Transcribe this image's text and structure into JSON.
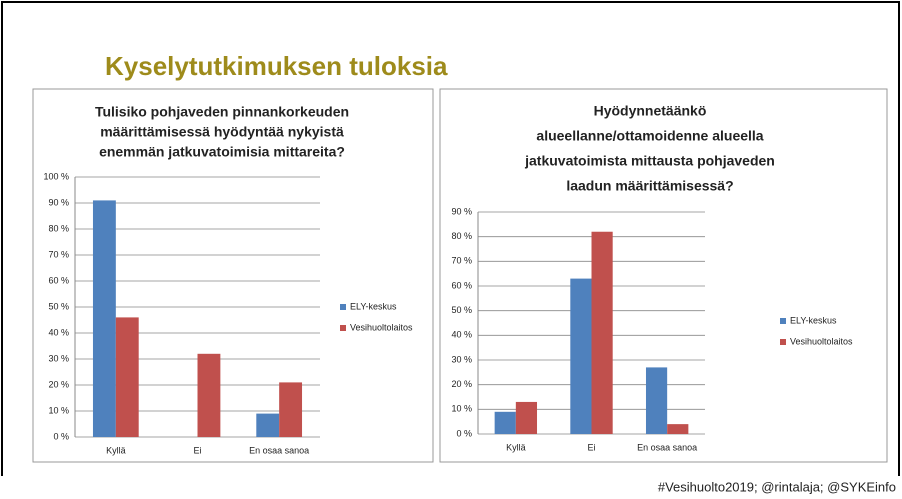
{
  "title": "Kyselytutkimuksen tuloksia",
  "footer": "#Vesihuolto2019; @rintalaja; @SYKEinfo",
  "chart_data": [
    {
      "type": "bar",
      "title": [
        "Tulisiko pohjaveden pinnankorkeuden",
        "määrittämisessä hyödyntää nykyistä",
        "enemmän jatkuvatoimisia mittareita?"
      ],
      "categories": [
        "Kyllä",
        "Ei",
        "En osaa sanoa"
      ],
      "series": [
        {
          "name": "ELY-keskus",
          "color": "#4f81bd",
          "values": [
            91,
            0,
            9
          ]
        },
        {
          "name": "Vesihuoltolaitos",
          "color": "#c0504d",
          "values": [
            46,
            32,
            21
          ]
        }
      ],
      "ylim": [
        0,
        100
      ],
      "yticks": [
        {
          "value": 0,
          "label": "0 %"
        },
        {
          "value": 10,
          "label": "10 %"
        },
        {
          "value": 20,
          "label": "20 %"
        },
        {
          "value": 30,
          "label": "30 %"
        },
        {
          "value": 40,
          "label": "40 %"
        },
        {
          "value": 50,
          "label": "50 %"
        },
        {
          "value": 60,
          "label": "60 %"
        },
        {
          "value": 70,
          "label": "70 %"
        },
        {
          "value": 80,
          "label": "80 %"
        },
        {
          "value": 90,
          "label": "90 %"
        },
        {
          "value": 100,
          "label": "100 %"
        }
      ],
      "grid": true,
      "legend": "right"
    },
    {
      "type": "bar",
      "title": [
        "Hyödynnetäänkö",
        "alueellanne/ottamoidenne alueella",
        "jatkuvatoimista mittausta pohjaveden",
        "laadun määrittämisessä?"
      ],
      "categories": [
        "Kyllä",
        "Ei",
        "En osaa sanoa"
      ],
      "series": [
        {
          "name": "ELY-keskus",
          "color": "#4f81bd",
          "values": [
            9,
            63,
            27
          ]
        },
        {
          "name": "Vesihuoltolaitos",
          "color": "#c0504d",
          "values": [
            13,
            82,
            4
          ]
        }
      ],
      "ylim": [
        0,
        90
      ],
      "yticks": [
        {
          "value": 0,
          "label": "0 %"
        },
        {
          "value": 10,
          "label": "10 %"
        },
        {
          "value": 20,
          "label": "20 %"
        },
        {
          "value": 30,
          "label": "30 %"
        },
        {
          "value": 40,
          "label": "40 %"
        },
        {
          "value": 50,
          "label": "50 %"
        },
        {
          "value": 60,
          "label": "60 %"
        },
        {
          "value": 70,
          "label": "70 %"
        },
        {
          "value": 80,
          "label": "80 %"
        },
        {
          "value": 90,
          "label": "90 %"
        }
      ],
      "grid": true,
      "legend": "right"
    }
  ]
}
